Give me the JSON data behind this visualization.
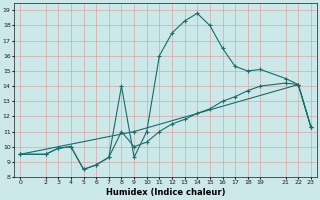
{
  "title": "",
  "xlabel": "Humidex (Indice chaleur)",
  "bg_color": "#cde8e8",
  "grid_color": "#d4a8a8",
  "line_color": "#1a6b6b",
  "xlim": [
    -0.5,
    23.5
  ],
  "ylim": [
    8,
    19.5
  ],
  "xticks": [
    0,
    2,
    3,
    4,
    5,
    6,
    7,
    8,
    9,
    10,
    11,
    12,
    13,
    14,
    15,
    16,
    17,
    18,
    19,
    21,
    22,
    23
  ],
  "yticks": [
    8,
    9,
    10,
    11,
    12,
    13,
    14,
    15,
    16,
    17,
    18,
    19
  ],
  "line1_x": [
    0,
    2,
    3,
    4,
    5,
    6,
    7,
    8,
    9,
    10,
    11,
    12,
    13,
    14,
    15,
    16,
    17,
    18,
    19,
    21,
    22,
    23
  ],
  "line1_y": [
    9.5,
    9.5,
    9.9,
    10.0,
    8.5,
    8.8,
    9.3,
    14.0,
    9.3,
    11.0,
    16.0,
    17.5,
    18.3,
    18.8,
    18.0,
    16.5,
    15.3,
    15.0,
    15.1,
    14.5,
    14.1,
    11.3
  ],
  "line2_x": [
    0,
    2,
    3,
    4,
    5,
    6,
    7,
    8,
    9,
    10,
    11,
    12,
    13,
    14,
    15,
    16,
    17,
    18,
    19,
    21,
    22,
    23
  ],
  "line2_y": [
    9.5,
    9.5,
    9.9,
    10.0,
    8.5,
    8.8,
    9.3,
    11.0,
    10.0,
    10.3,
    11.0,
    11.5,
    11.8,
    12.2,
    12.5,
    13.0,
    13.3,
    13.7,
    14.0,
    14.2,
    14.1,
    11.3
  ],
  "line3_x": [
    0,
    9,
    22,
    23
  ],
  "line3_y": [
    9.5,
    11.0,
    14.1,
    11.3
  ],
  "marker": "+",
  "marker_size": 3,
  "linewidth": 0.8
}
